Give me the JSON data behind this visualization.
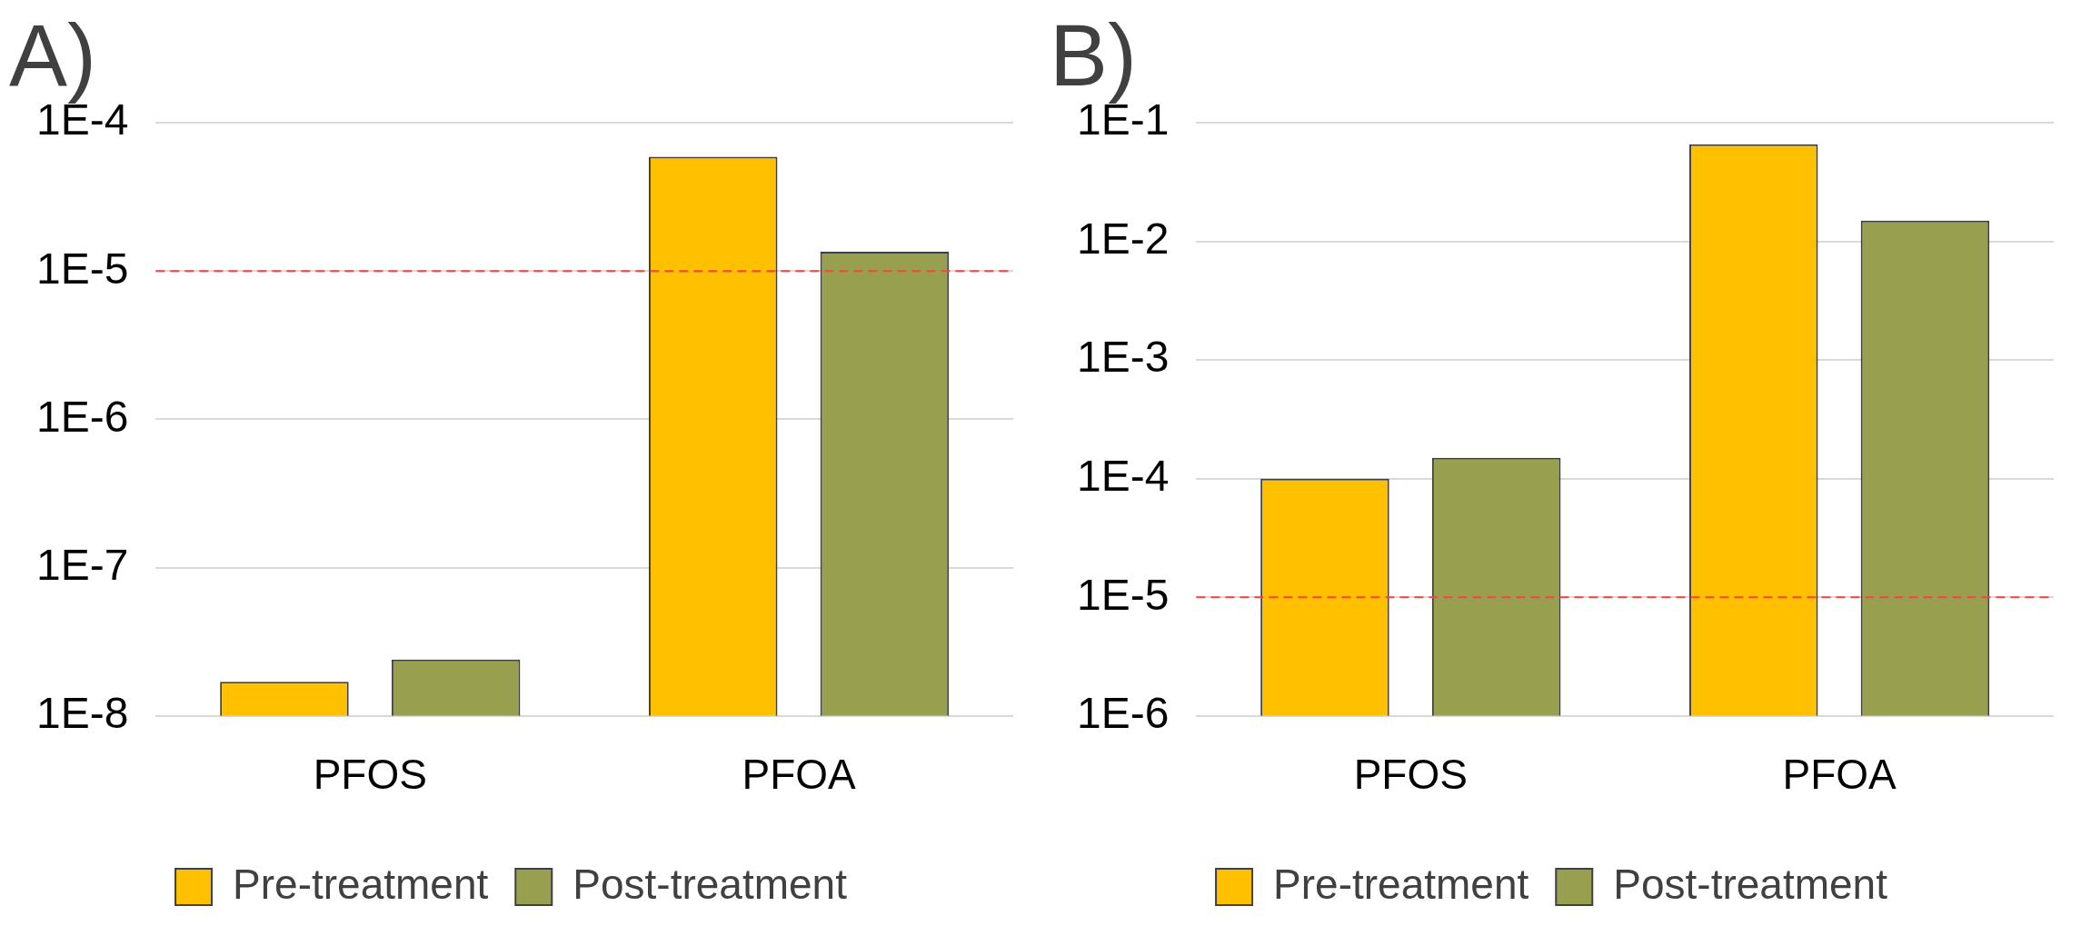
{
  "chart_data": [
    {
      "type": "bar",
      "title": "A)",
      "categories": [
        "PFOS",
        "PFOA"
      ],
      "log": "y",
      "grid": "y",
      "legend": "bottom",
      "ylim": [
        1e-08,
        0.0001
      ],
      "yticks": [
        {
          "value": 1e-08,
          "label": "1E-8"
        },
        {
          "value": 1e-07,
          "label": "1E-7"
        },
        {
          "value": 1e-06,
          "label": "1E-6"
        },
        {
          "value": 1e-05,
          "label": "1E-5"
        },
        {
          "value": 0.0001,
          "label": "1E-4"
        }
      ],
      "series": [
        {
          "name": "Pre-treatment",
          "color": "#ffc000",
          "values": [
            1.7e-08,
            5.9e-05
          ]
        },
        {
          "name": "Post-treatment",
          "color": "#98a050",
          "values": [
            2.4e-08,
            1.35e-05
          ]
        }
      ],
      "ref_lines": [
        {
          "axis": "y",
          "value": 1e-05,
          "color": "#ff4040",
          "line_style": "dashed"
        }
      ]
    },
    {
      "type": "bar",
      "title": "B)",
      "categories": [
        "PFOS",
        "PFOA"
      ],
      "log": "y",
      "grid": "y",
      "legend": "bottom",
      "ylim": [
        1e-06,
        0.1
      ],
      "yticks": [
        {
          "value": 1e-06,
          "label": "1E-6"
        },
        {
          "value": 1e-05,
          "label": "1E-5"
        },
        {
          "value": 0.0001,
          "label": "1E-4"
        },
        {
          "value": 0.001,
          "label": "1E-3"
        },
        {
          "value": 0.01,
          "label": "1E-2"
        },
        {
          "value": 0.1,
          "label": "1E-1"
        }
      ],
      "series": [
        {
          "name": "Pre-treatment",
          "color": "#ffc000",
          "values": [
            0.0001,
            0.066
          ]
        },
        {
          "name": "Post-treatment",
          "color": "#98a050",
          "values": [
            0.00015,
            0.015
          ]
        }
      ],
      "ref_lines": [
        {
          "axis": "y",
          "value": 1e-05,
          "color": "#ff4040",
          "line_style": "dashed"
        }
      ]
    }
  ]
}
